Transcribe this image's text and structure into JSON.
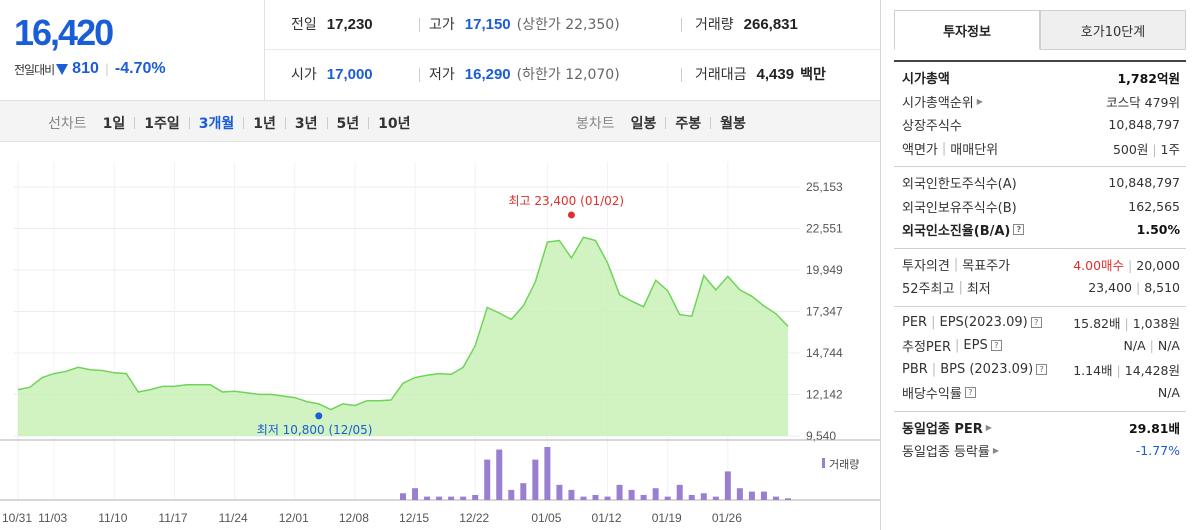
{
  "price": {
    "current": "16,420",
    "change_label": "전일대비",
    "change_value": "810",
    "change_percent": "-4.70%"
  },
  "summary": {
    "prev_label": "전일",
    "prev_value": "17,230",
    "high_label": "고가",
    "high_value": "17,150",
    "upper_limit": "(상한가 22,350)",
    "volume_label": "거래량",
    "volume_value": "266,831",
    "open_label": "시가",
    "open_value": "17,000",
    "low_label": "저가",
    "low_value": "16,290",
    "lower_limit": "(하한가 12,070)",
    "amount_label": "거래대금",
    "amount_value": "4,439",
    "amount_unit": "백만"
  },
  "toolbar": {
    "line_chart_label": "선차트",
    "periods": [
      "1일",
      "1주일",
      "3개월",
      "1년",
      "3년",
      "5년",
      "10년"
    ],
    "active_period": "3개월",
    "candle_label": "봉차트",
    "candle_periods": [
      "일봉",
      "주봉",
      "월봉"
    ]
  },
  "chart_data": {
    "type": "area",
    "y_ticks": [
      "25,153",
      "22,551",
      "19,949",
      "17,347",
      "14,744",
      "12,142",
      "9,540"
    ],
    "ylim": [
      9540,
      25153
    ],
    "x_labels": [
      "10/31",
      "11/03",
      "11/10",
      "11/17",
      "11/24",
      "12/01",
      "12/08",
      "12/15",
      "12/22",
      "01/05",
      "01/12",
      "01/19",
      "01/26"
    ],
    "prices": [
      12450,
      12600,
      13200,
      13450,
      13600,
      13850,
      13700,
      13650,
      13500,
      13450,
      12300,
      12450,
      12650,
      12650,
      12750,
      12750,
      12750,
      12300,
      12350,
      12250,
      12150,
      12150,
      12050,
      11950,
      11700,
      11550,
      11200,
      11550,
      11450,
      11750,
      11750,
      11800,
      12850,
      13200,
      13350,
      13450,
      13400,
      13850,
      15200,
      17600,
      17250,
      16850,
      17700,
      19200,
      21700,
      21800,
      20700,
      22000,
      21800,
      20400,
      18400,
      18000,
      17650,
      19300,
      18650,
      17150,
      17050,
      19600,
      18700,
      19550,
      18700,
      18300,
      17700,
      17200,
      16420
    ],
    "high_annotation": "최고 23,400 (01/02)",
    "low_annotation": "최저 10,800 (12/05)",
    "high_value": 23400,
    "low_value": 10800,
    "volume_legend": "거래량",
    "volumes": [
      0,
      0,
      0,
      0,
      0,
      0,
      0,
      0,
      0,
      0,
      0,
      0,
      0,
      0,
      0,
      0,
      0,
      0,
      0,
      0,
      0,
      0,
      0,
      0,
      0,
      0,
      0,
      0,
      0,
      0,
      0,
      0,
      8,
      14,
      4,
      4,
      4,
      4,
      6,
      48,
      60,
      12,
      20,
      48,
      63,
      18,
      12,
      4,
      6,
      4,
      18,
      12,
      6,
      14,
      4,
      18,
      6,
      8,
      4,
      34,
      14,
      10,
      10,
      4,
      2
    ],
    "line_color": "#6fd45a",
    "fill_color": "#c9f1b7",
    "volume_color": "#9a7fd0"
  },
  "side_panel": {
    "tabs": [
      "투자정보",
      "호가10단계"
    ],
    "sections": [
      [
        {
          "label": "시가총액",
          "value": "1,782억원",
          "bold": true
        },
        {
          "label": "시가총액순위",
          "value": "코스닥 479위",
          "arrow": true
        },
        {
          "label": "상장주식수",
          "value": "10,848,797"
        },
        {
          "label": "액면가",
          "label2": "매매단위",
          "value": "500원",
          "value2": "1주"
        }
      ],
      [
        {
          "label": "외국인한도주식수(A)",
          "value": "10,848,797"
        },
        {
          "label": "외국인보유주식수(B)",
          "value": "162,565"
        },
        {
          "label": "외국인소진율(B/A)",
          "value": "1.50%",
          "bold": true,
          "help": true
        }
      ],
      [
        {
          "label": "투자의견",
          "label2": "목표주가",
          "value": "4.00매수",
          "value2": "20,000",
          "red_first": true
        },
        {
          "label": "52주최고",
          "label2": "최저",
          "value": "23,400",
          "value2": "8,510"
        }
      ],
      [
        {
          "label": "PER",
          "label2": "EPS(2023.09)",
          "value": "15.82배",
          "value2": "1,038원",
          "help": true
        },
        {
          "label": "추정PER",
          "label2": "EPS",
          "value": "N/A",
          "value2": "N/A",
          "help": true
        },
        {
          "label": "PBR",
          "label2": "BPS (2023.09)",
          "value": "1.14배",
          "value2": "14,428원",
          "help": true
        },
        {
          "label": "배당수익률",
          "value": "N/A",
          "help": true
        }
      ],
      [
        {
          "label": "동일업종 PER",
          "value": "29.81배",
          "bold": true,
          "arrow": true
        },
        {
          "label": "동일업종 등락률",
          "value": "-1.77%",
          "arrow": true,
          "blue": true
        }
      ]
    ]
  }
}
